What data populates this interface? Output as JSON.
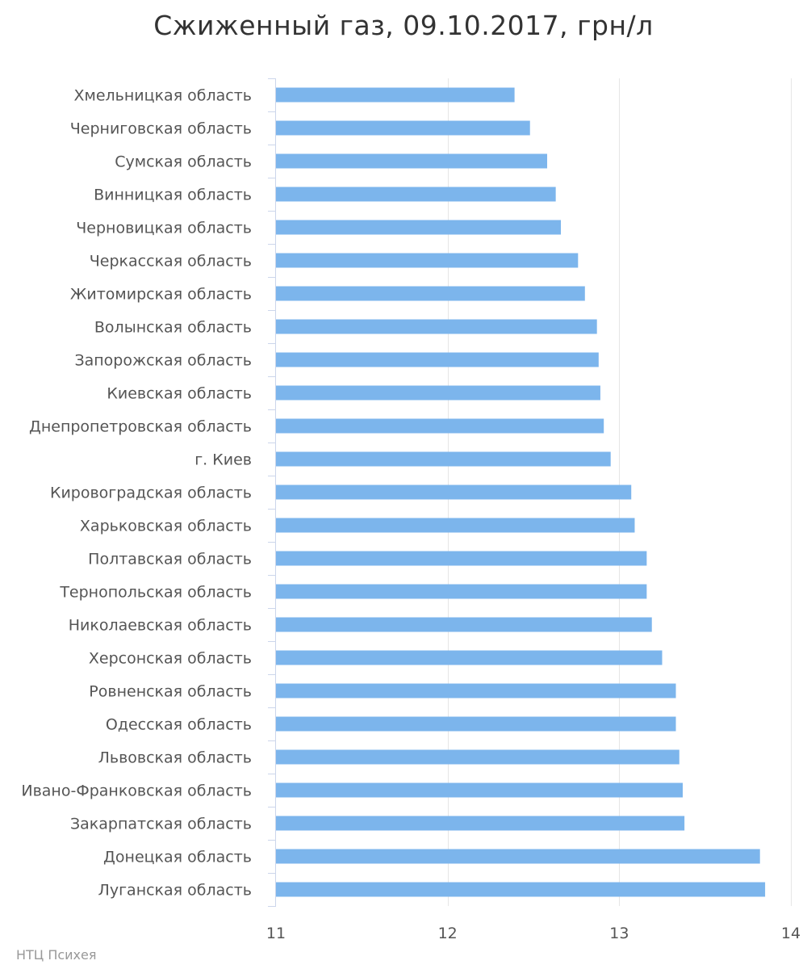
{
  "chart_data": {
    "type": "bar",
    "orientation": "horizontal",
    "title": "Сжиженный газ, 09.10.2017, грн/л",
    "xlabel": "",
    "ylabel": "",
    "xlim": [
      11,
      14
    ],
    "x_ticks": [
      "11",
      "12",
      "13",
      "14"
    ],
    "grid": true,
    "legend": "none",
    "bar_color": "#7cb5ec",
    "categories": [
      "Хмельницкая область",
      "Черниговская область",
      "Сумская область",
      "Винницкая область",
      "Черновицкая область",
      "Черкасская область",
      "Житомирская область",
      "Волынская область",
      "Запорожская область",
      "Киевская область",
      "Днепропетровская область",
      "г. Киев",
      "Кировоградская область",
      "Харьковская область",
      "Полтавская область",
      "Тернопольская область",
      "Николаевская область",
      "Херсонская область",
      "Ровненская область",
      "Одесская область",
      "Львовская область",
      "Ивано-Франковская область",
      "Закарпатская область",
      "Донецкая область",
      "Луганская область"
    ],
    "values": [
      12.39,
      12.48,
      12.58,
      12.63,
      12.66,
      12.76,
      12.8,
      12.87,
      12.88,
      12.89,
      12.91,
      12.95,
      13.07,
      13.09,
      13.16,
      13.16,
      13.19,
      13.25,
      13.33,
      13.33,
      13.35,
      13.37,
      13.38,
      13.82,
      13.85
    ]
  },
  "footer": {
    "credit": "НТЦ Психея"
  }
}
